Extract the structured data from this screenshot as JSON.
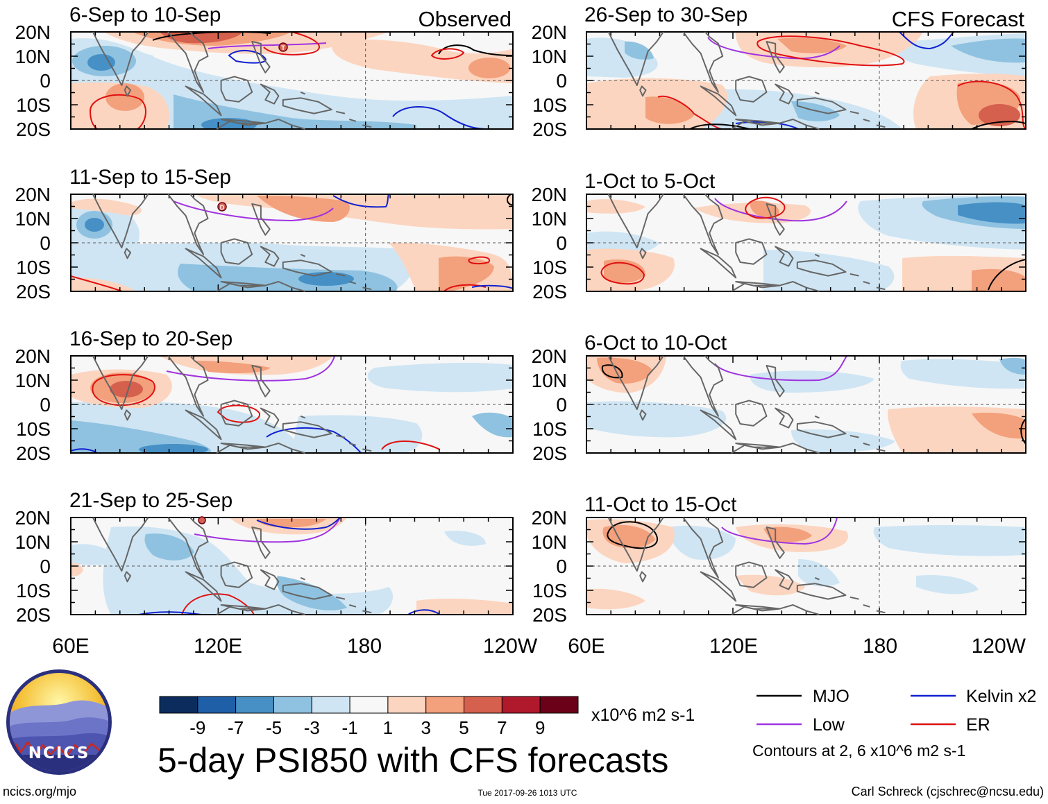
{
  "figure": {
    "title": "5-day PSI850 with CFS forecasts",
    "column_labels": [
      "Observed",
      "CFS Forecast"
    ],
    "lat_labels": [
      "20N",
      "10N",
      "0",
      "10S",
      "20S"
    ],
    "lon_labels": [
      "60E",
      "120E",
      "180",
      "120W"
    ]
  },
  "panels": [
    {
      "period": "6-Sep to 10-Sep",
      "column": 0,
      "row": 0,
      "kind": "observed"
    },
    {
      "period": "11-Sep to 15-Sep",
      "column": 0,
      "row": 1,
      "kind": "observed"
    },
    {
      "period": "16-Sep to 20-Sep",
      "column": 0,
      "row": 2,
      "kind": "observed"
    },
    {
      "period": "21-Sep to 25-Sep",
      "column": 0,
      "row": 3,
      "kind": "observed"
    },
    {
      "period": "26-Sep to 30-Sep",
      "column": 1,
      "row": 0,
      "kind": "forecast"
    },
    {
      "period": "1-Oct to 5-Oct",
      "column": 1,
      "row": 1,
      "kind": "forecast"
    },
    {
      "period": "6-Oct to 10-Oct",
      "column": 1,
      "row": 2,
      "kind": "forecast"
    },
    {
      "period": "11-Oct to 15-Oct",
      "column": 1,
      "row": 3,
      "kind": "forecast"
    }
  ],
  "colorbar": {
    "ticks": [
      "-9",
      "-7",
      "-5",
      "-3",
      "-1",
      "1",
      "3",
      "5",
      "7",
      "9"
    ],
    "colors": [
      "#0b2c5c",
      "#1f5fa8",
      "#4690c6",
      "#8fc2e0",
      "#cfe5f3",
      "#f7f7f7",
      "#fcd5c0",
      "#f3a07c",
      "#d5604d",
      "#b0182c",
      "#6b0119"
    ],
    "units": "x10^6 m2 s-1"
  },
  "legend": {
    "items": [
      {
        "label": "MJO",
        "color": "#000000"
      },
      {
        "label": "Kelvin x2",
        "color": "#1020d0"
      },
      {
        "label": "Low",
        "color": "#a033e0"
      },
      {
        "label": "ER",
        "color": "#e01010"
      }
    ],
    "note": "Contours at 2, 6 x10^6 m2 s-1"
  },
  "logo": {
    "text": "NCICS"
  },
  "footer": {
    "left": "ncics.org/mjo",
    "center": "Tue 2017-09-26 1013 UTC",
    "right": "Carl Schreck (cjschrec@ncsu.edu)"
  },
  "storm_markers": [
    {
      "panel": 0,
      "label": "T"
    },
    {
      "panel": 1,
      "label": "D"
    },
    {
      "panel": 3,
      "label": "S"
    }
  ],
  "map_legend_colors": {
    "pos1": "#fcd5c0",
    "pos3": "#f3a07c",
    "pos5": "#d5604d",
    "pos7": "#b0182c",
    "neg1": "#cfe5f3",
    "neg3": "#8fc2e0",
    "neg5": "#4690c6",
    "neg7": "#1f5fa8",
    "coast": "#666666"
  }
}
